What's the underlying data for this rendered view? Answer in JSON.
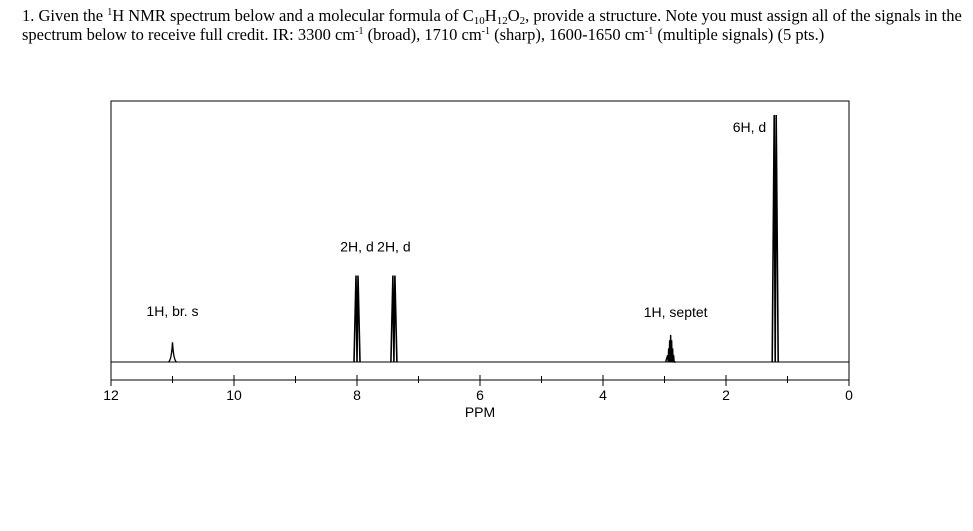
{
  "question": {
    "number": "1.",
    "t1": "Given the ",
    "sup_nucleus": "1",
    "t2": "H NMR spectrum below and a molecular formula of C",
    "sub_c": "10",
    "t3": "H",
    "sub_h": "12",
    "t4": "O",
    "sub_o": "2",
    "t5": ", provide a structure. Note you must assign all of the signals in the spectrum below to receive full credit. IR: 3300 cm",
    "sup1": "-1",
    "t6": " (broad), 1710 cm",
    "sup2": "-1",
    "t7": " (sharp), 1600-1650 cm",
    "sup3": "-1",
    "t8": " (multiple signals) (5 pts.)"
  },
  "chart_data": {
    "type": "nmr-spectrum",
    "xlabel": "PPM",
    "xlim": [
      12,
      0
    ],
    "reversed_axis": true,
    "tick_labels": [
      "12",
      "10",
      "8",
      "6",
      "4",
      "2",
      "0"
    ],
    "tick_values": [
      12,
      10,
      8,
      6,
      4,
      2,
      0
    ],
    "minor_tick_values": [
      11,
      9,
      7,
      5,
      3,
      1
    ],
    "peaks": [
      {
        "ppm": 11.0,
        "relative_height": 0.08,
        "multiplicity": "br. s",
        "label": "1H, br. s"
      },
      {
        "ppm": 8.0,
        "relative_height": 0.35,
        "multiplicity": "d",
        "label": "2H, d"
      },
      {
        "ppm": 7.4,
        "relative_height": 0.35,
        "multiplicity": "d",
        "label": "2H, d"
      },
      {
        "ppm": 2.9,
        "relative_height": 0.11,
        "multiplicity": "septet",
        "label": "1H, septet"
      },
      {
        "ppm": 1.2,
        "relative_height": 1.0,
        "multiplicity": "d",
        "label": "6H, d"
      }
    ],
    "colors": {
      "line": "#000000",
      "frame": "#000000"
    }
  }
}
